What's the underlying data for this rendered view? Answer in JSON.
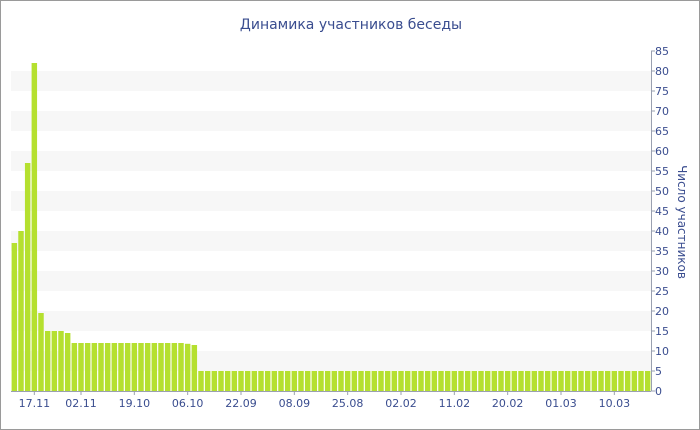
{
  "chart_data": {
    "type": "bar",
    "title": "Динамика участников беседы",
    "xlabel": "",
    "ylabel": "Число участников",
    "ylim": [
      0,
      85
    ],
    "y_ticks": [
      0,
      5,
      10,
      15,
      20,
      25,
      30,
      35,
      40,
      45,
      50,
      55,
      60,
      65,
      70,
      75,
      80,
      85
    ],
    "y_axis_position": "right",
    "grid": "horizontal alternating bands",
    "bar_color": "#b5e02f",
    "band_color": "#f7f7f7",
    "text_color": "#3a4d8f",
    "x_tick_labels": [
      {
        "label": "17.11",
        "index": 3
      },
      {
        "label": "02.11",
        "index": 10
      },
      {
        "label": "19.10",
        "index": 18
      },
      {
        "label": "06.10",
        "index": 26
      },
      {
        "label": "22.09",
        "index": 34
      },
      {
        "label": "08.09",
        "index": 42
      },
      {
        "label": "25.08",
        "index": 50
      },
      {
        "label": "02.02",
        "index": 58
      },
      {
        "label": "11.02",
        "index": 66
      },
      {
        "label": "20.02",
        "index": 74
      },
      {
        "label": "01.03",
        "index": 82
      },
      {
        "label": "10.03",
        "index": 90
      }
    ],
    "values": [
      37,
      40,
      57,
      82,
      19.5,
      15,
      15,
      15,
      14.5,
      12,
      12,
      12,
      12,
      12,
      12,
      12,
      12,
      12,
      12,
      12,
      12,
      12,
      12,
      12,
      12,
      12,
      11.8,
      11.5,
      5,
      5,
      5,
      5,
      5,
      5,
      5,
      5,
      5,
      5,
      5,
      5,
      5,
      5,
      5,
      5,
      5,
      5,
      5,
      5,
      5,
      5,
      5,
      5,
      5,
      5,
      5,
      5,
      5,
      5,
      5,
      5,
      5,
      5,
      5,
      5,
      5,
      5,
      5,
      5,
      5,
      5,
      5,
      5,
      5,
      5,
      5,
      5,
      5,
      5,
      5,
      5,
      5,
      5,
      5,
      5,
      5,
      5,
      5,
      5,
      5,
      5,
      5,
      5,
      5,
      5,
      5,
      5
    ]
  }
}
